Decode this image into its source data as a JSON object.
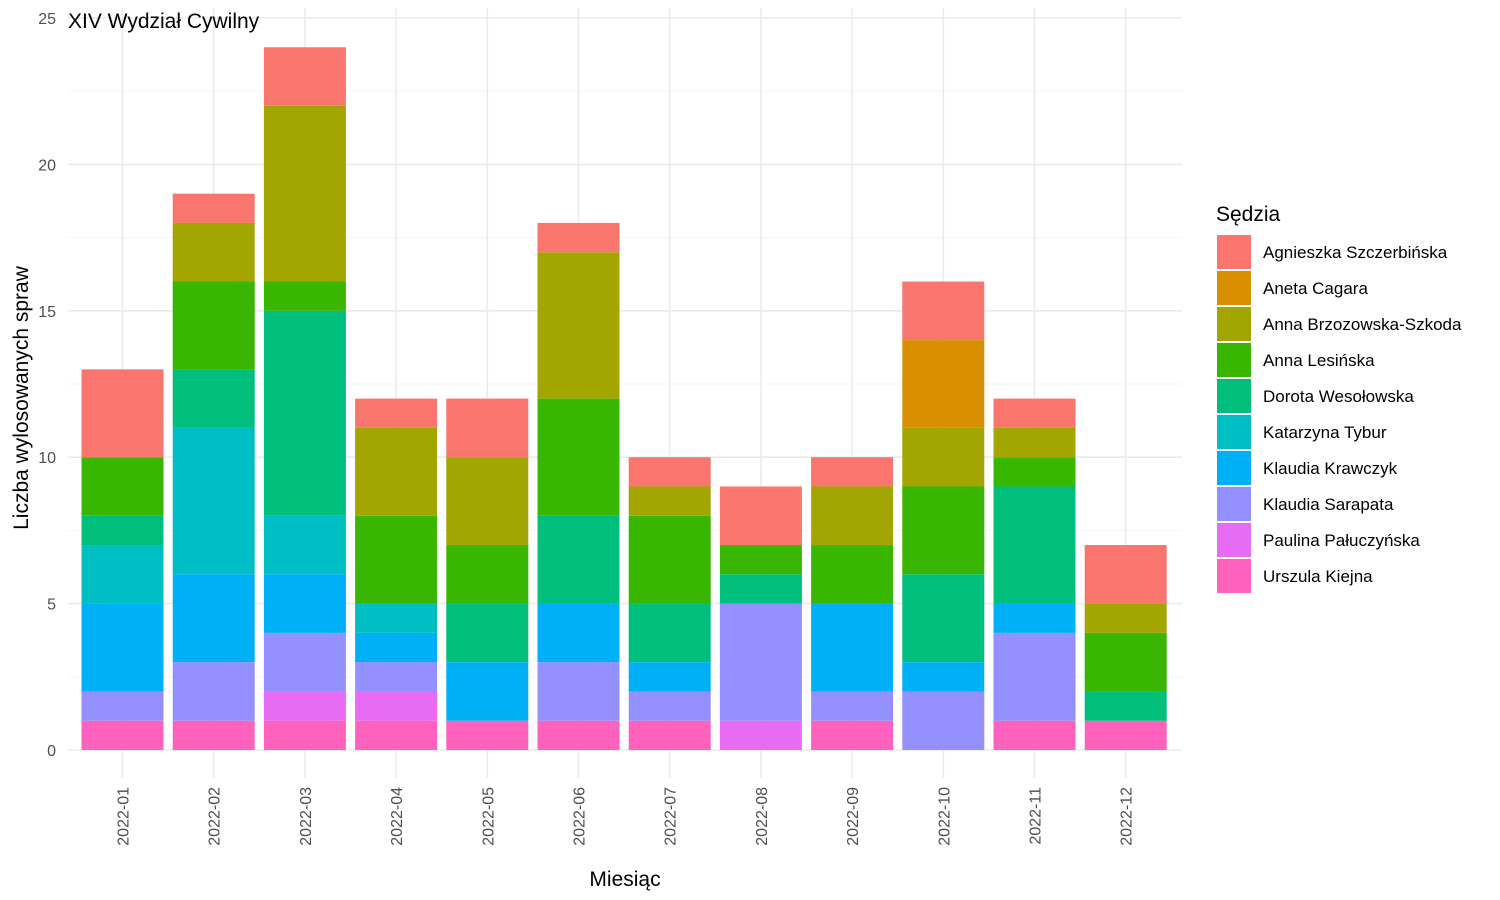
{
  "chart_data": {
    "type": "bar",
    "stacked": true,
    "title": "XIV Wydział Cywilny",
    "xlabel": "Miesiąc",
    "ylabel": "Liczba wylosowanych spraw",
    "ylim": [
      0,
      25
    ],
    "yticks": [
      0,
      5,
      10,
      15,
      20,
      25
    ],
    "grid": true,
    "legend_position": "right",
    "legend_title": "Sędzia",
    "categories": [
      "2022-01",
      "2022-02",
      "2022-03",
      "2022-04",
      "2022-05",
      "2022-06",
      "2022-07",
      "2022-08",
      "2022-09",
      "2022-10",
      "2022-11",
      "2022-12"
    ],
    "series": [
      {
        "name": "Agnieszka Szczerbińska",
        "color": "#F8766D",
        "values": [
          3,
          1,
          2,
          1,
          2,
          1,
          1,
          2,
          1,
          2,
          1,
          2
        ]
      },
      {
        "name": "Aneta Cagara",
        "color": "#D89000",
        "values": [
          0,
          0,
          0,
          0,
          0,
          0,
          0,
          0,
          0,
          3,
          0,
          0
        ]
      },
      {
        "name": "Anna Brzozowska-Szkoda",
        "color": "#A3A500",
        "values": [
          0,
          2,
          6,
          3,
          3,
          5,
          1,
          0,
          2,
          2,
          1,
          1
        ]
      },
      {
        "name": "Anna Lesińska",
        "color": "#39B600",
        "values": [
          2,
          3,
          1,
          3,
          2,
          4,
          3,
          1,
          2,
          3,
          1,
          2
        ]
      },
      {
        "name": "Dorota Wesołowska",
        "color": "#00BF7D",
        "values": [
          1,
          2,
          7,
          0,
          2,
          3,
          2,
          1,
          0,
          3,
          4,
          1
        ]
      },
      {
        "name": "Katarzyna Tybur",
        "color": "#00BFC4",
        "values": [
          2,
          5,
          2,
          1,
          0,
          0,
          0,
          0,
          0,
          0,
          0,
          0
        ]
      },
      {
        "name": "Klaudia Krawczyk",
        "color": "#00B0F6",
        "values": [
          3,
          3,
          2,
          1,
          2,
          2,
          1,
          0,
          3,
          1,
          1,
          0
        ]
      },
      {
        "name": "Klaudia Sarapata",
        "color": "#9590FF",
        "values": [
          1,
          2,
          2,
          1,
          0,
          2,
          1,
          4,
          1,
          2,
          3,
          0
        ]
      },
      {
        "name": "Paulina Pałuczyńska",
        "color": "#E76BF3",
        "values": [
          0,
          0,
          1,
          1,
          0,
          0,
          0,
          1,
          0,
          0,
          0,
          0
        ]
      },
      {
        "name": "Urszula Kiejna",
        "color": "#FF62BC",
        "values": [
          1,
          1,
          1,
          1,
          1,
          1,
          1,
          0,
          1,
          0,
          1,
          1
        ]
      }
    ]
  }
}
